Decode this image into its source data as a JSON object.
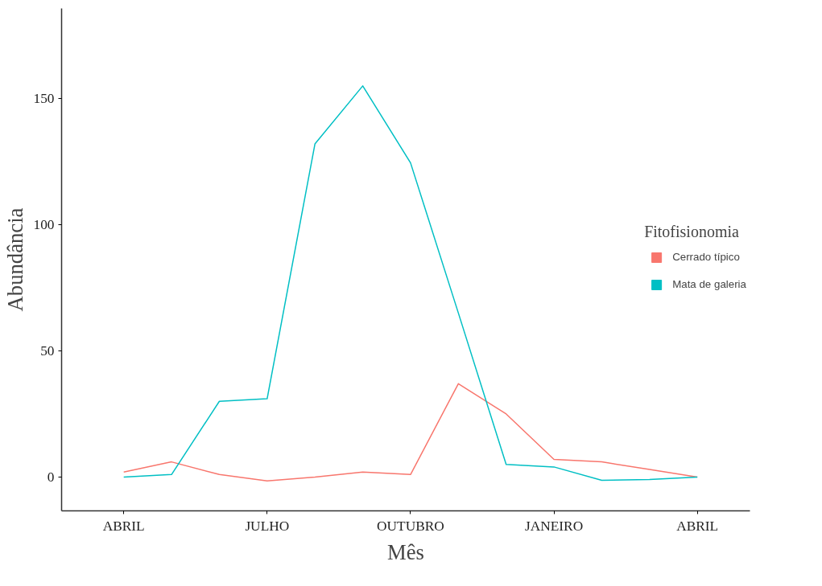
{
  "chart_data": {
    "type": "line",
    "xlabel": "Mês",
    "ylabel": "Abundância",
    "legend_title": "Fitofisionomia",
    "legend": "right",
    "grid": false,
    "categories": [
      "ABRIL",
      null,
      null,
      "JULHO",
      null,
      null,
      "OUTUBRO",
      null,
      null,
      "JANEIRO",
      null,
      null,
      "ABRIL"
    ],
    "series": [
      {
        "name": "Cerrado típico",
        "color": "#f8766d",
        "values": [
          2,
          6,
          1,
          -1.5,
          0,
          2,
          1,
          37,
          25,
          7,
          6,
          3,
          0
        ]
      },
      {
        "name": "Mata de galeria",
        "color": "#00bfc4",
        "values": [
          0,
          1,
          30,
          31,
          132,
          155,
          124.5,
          65,
          5,
          4,
          -1.3,
          -1,
          0
        ]
      }
    ],
    "ylim": [
      -13.4,
      185.7
    ],
    "yticks": [
      0,
      50,
      100,
      150
    ]
  }
}
